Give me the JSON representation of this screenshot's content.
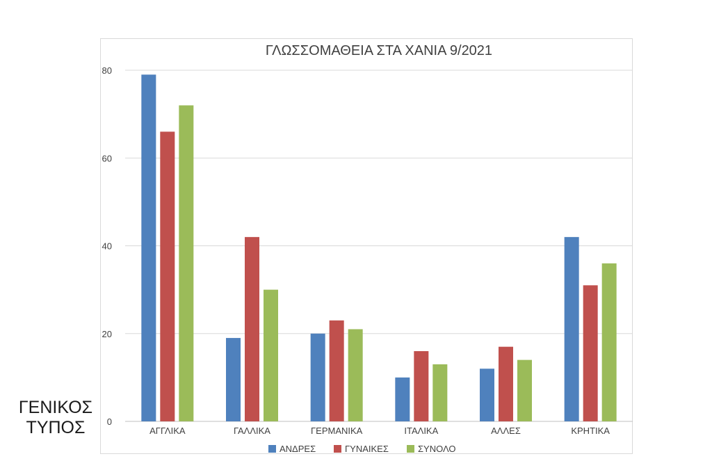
{
  "chart_data": {
    "type": "bar",
    "title": "ΓΛΩΣΣΟΜΑΘΕΙΑ ΣΤΑ ΧΑΝΙΑ 9/2021",
    "categories": [
      "ΑΓΓΛΙΚΑ",
      "ΓΑΛΛΙΚΑ",
      "ΓΕΡΜΑΝΙΚΑ",
      "ΙΤΑΛΙΚΑ",
      "ΑΛΛΕΣ",
      "ΚΡΗΤΙΚΑ"
    ],
    "series": [
      {
        "name": "ΑΝΔΡΕΣ",
        "color": "#4f81bd",
        "values": [
          79,
          19,
          20,
          10,
          12,
          42
        ]
      },
      {
        "name": "ΓΥΝΑΙΚΕΣ",
        "color": "#c0504d",
        "values": [
          66,
          42,
          23,
          16,
          17,
          31
        ]
      },
      {
        "name": "ΣΥΝΟΛΟ",
        "color": "#9bbb59",
        "values": [
          72,
          30,
          21,
          13,
          14,
          36
        ]
      }
    ],
    "ylim": [
      0,
      80
    ],
    "yticks": [
      0,
      20,
      40,
      60,
      80
    ],
    "grid": true,
    "legend": "bottom"
  },
  "side_caption": {
    "line1": "ΓΕΝΙΚΟΣ",
    "line2": "ΤΥΠΟΣ"
  }
}
